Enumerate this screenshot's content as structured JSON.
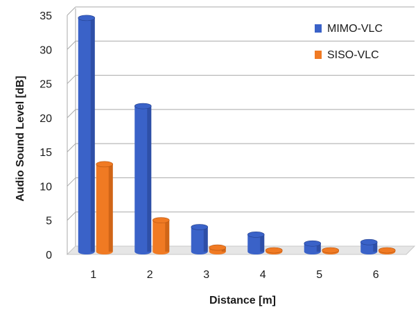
{
  "chart_data": {
    "type": "bar",
    "style": "3d-cylinder",
    "categories": [
      "1",
      "2",
      "3",
      "4",
      "5",
      "6"
    ],
    "series": [
      {
        "name": "MIMO-VLC",
        "values": [
          34.2,
          21.3,
          3.6,
          2.5,
          1.2,
          1.4
        ]
      },
      {
        "name": "SISO-VLC",
        "values": [
          12.8,
          4.6,
          0.6,
          0.2,
          0.2,
          0.2
        ]
      }
    ],
    "xlabel": "Distance [m]",
    "ylabel": "Audio Sound Level [dB]",
    "ylim": [
      0,
      35
    ],
    "yticks": [
      "0",
      "5",
      "10",
      "15",
      "20",
      "25",
      "30",
      "35"
    ],
    "grid": true,
    "legend_position": "top-right",
    "colors": {
      "series": [
        "#3a62c8",
        "#f07a23"
      ],
      "grid": "#a8a8a8",
      "floor": "#c8c8c8",
      "text": "#1a1a1a"
    }
  }
}
